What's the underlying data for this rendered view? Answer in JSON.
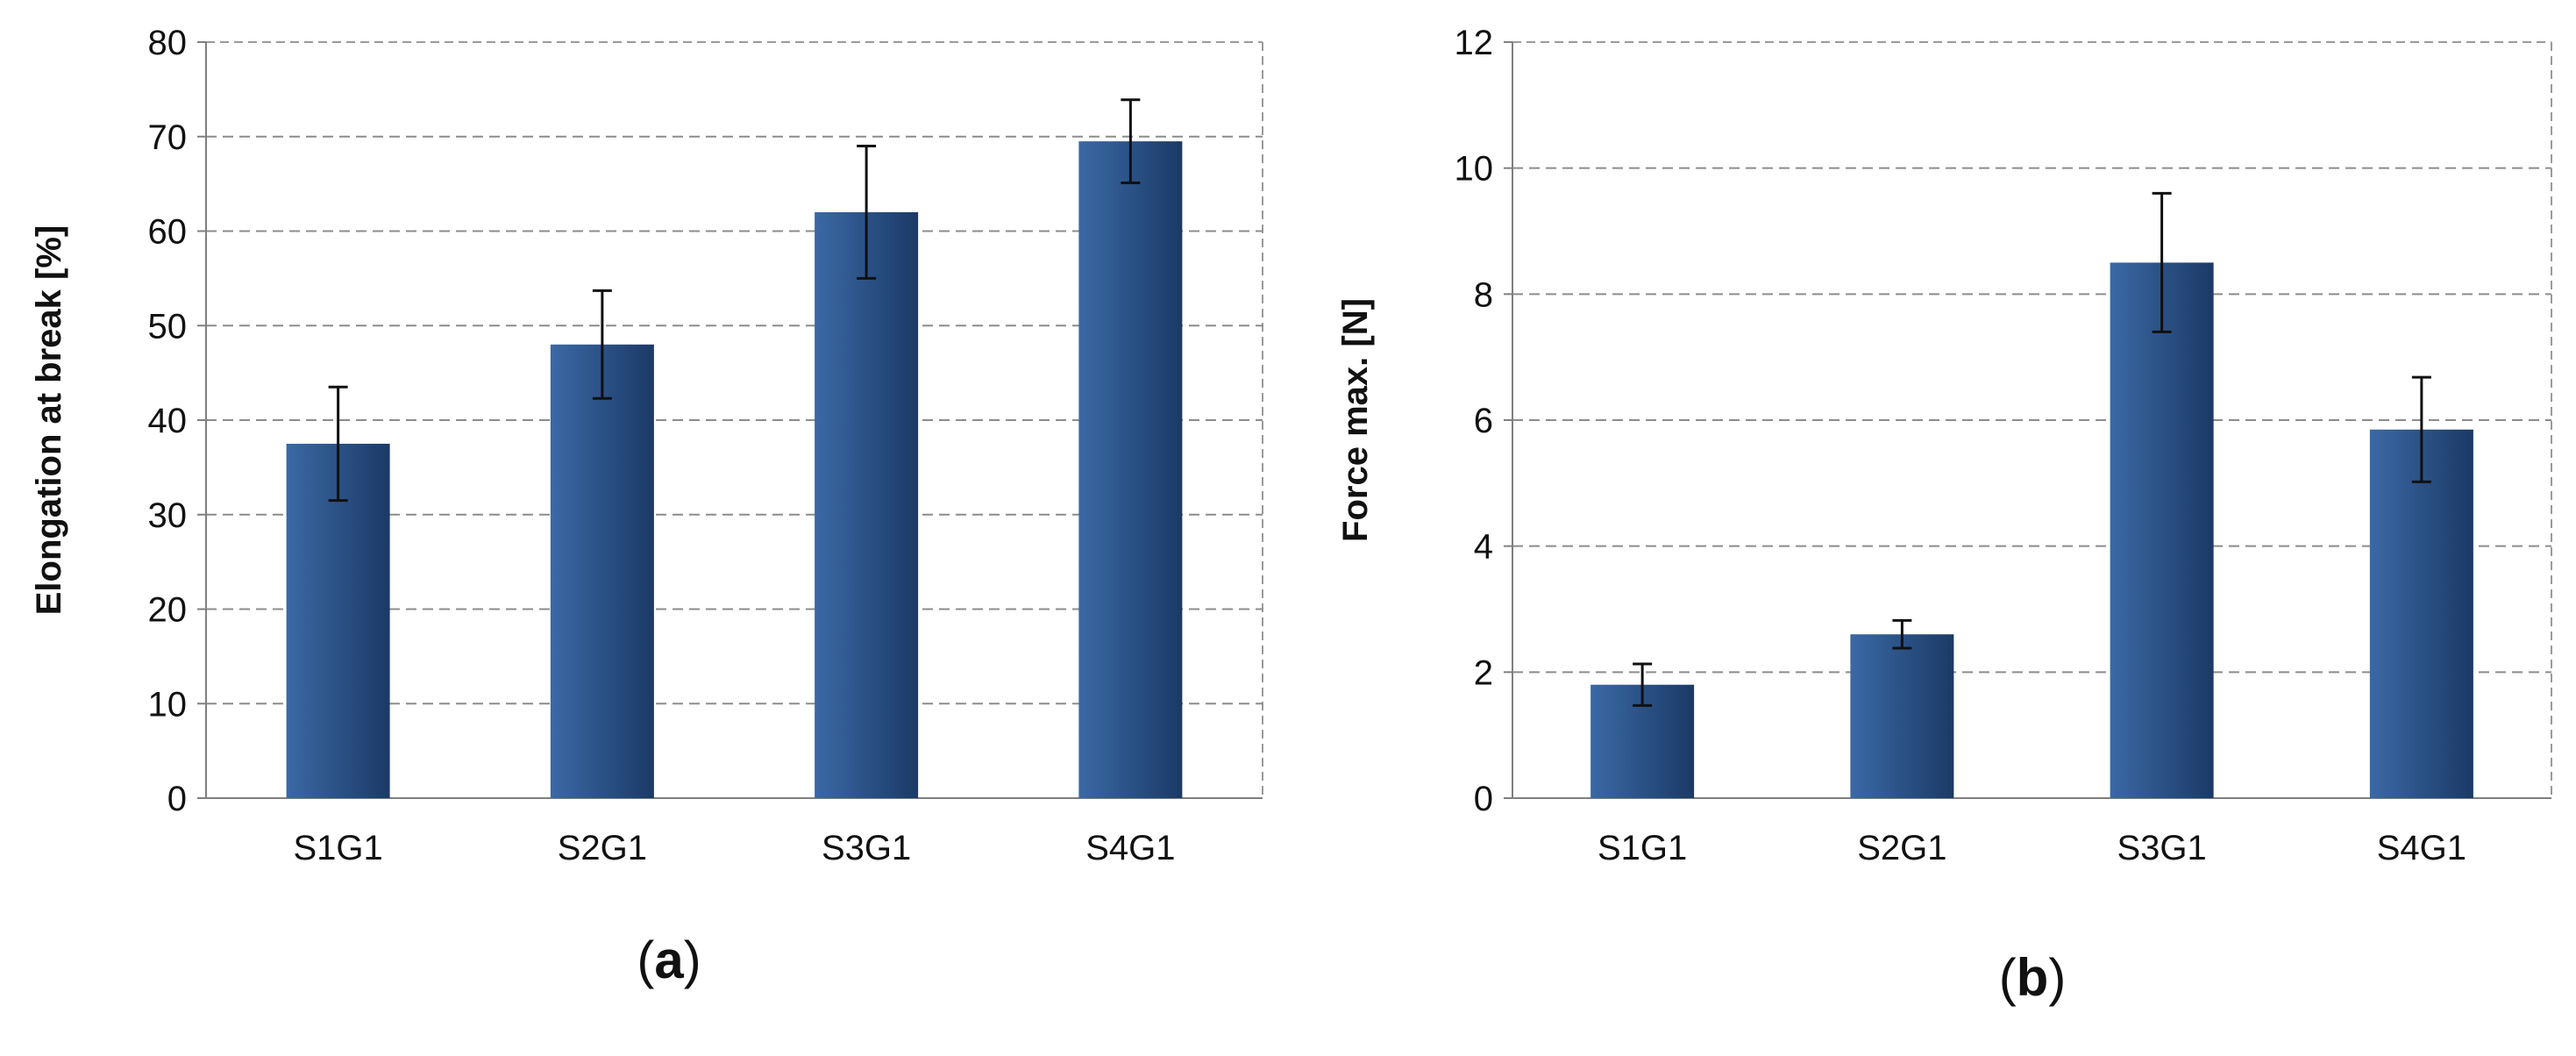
{
  "chart_data": [
    {
      "type": "bar",
      "panel_label": "(a)",
      "categories": [
        "S1G1",
        "S2G1",
        "S3G1",
        "S4G1"
      ],
      "values": [
        37.5,
        48,
        62,
        69.5
      ],
      "errors": [
        6,
        5.7,
        7,
        4.4
      ],
      "ylabel": "Elongation at break [%]",
      "xlabel": "",
      "ylim": [
        0,
        80
      ],
      "yticks": [
        "0",
        "10",
        "20",
        "30",
        "40",
        "50",
        "60",
        "70",
        "80"
      ],
      "grid": "horizontal dashed",
      "legend": "none",
      "bar_color": "#2f5a8e"
    },
    {
      "type": "bar",
      "panel_label": "(b)",
      "categories": [
        "S1G1",
        "S2G1",
        "S3G1",
        "S4G1"
      ],
      "values": [
        1.8,
        2.6,
        8.5,
        5.85
      ],
      "errors": [
        0.33,
        0.22,
        1.1,
        0.83
      ],
      "ylabel": "Force max. [N]",
      "xlabel": "",
      "ylim": [
        0,
        12
      ],
      "yticks": [
        "0",
        "2",
        "4",
        "6",
        "8",
        "10",
        "12"
      ],
      "grid": "horizontal dashed",
      "legend": "none",
      "bar_color": "#2f5a8e"
    }
  ]
}
